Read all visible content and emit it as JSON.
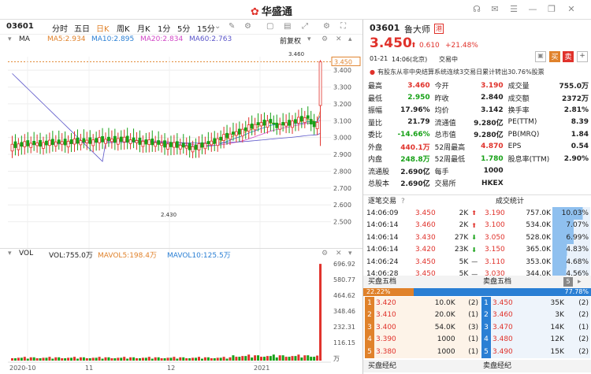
{
  "window": {
    "logo": "华盛通",
    "icons": [
      "headset-icon",
      "mail-icon",
      "menu-icon",
      "minimize-icon",
      "restore-icon",
      "close-icon"
    ]
  },
  "toolbar": {
    "code": "03601",
    "periods": [
      "分时",
      "五日",
      "日K",
      "周K",
      "月K",
      "1分",
      "5分",
      "15分"
    ],
    "active": "日K",
    "adj": "前复权"
  },
  "ma": {
    "label": "MA",
    "ma5": "MA5:2.934",
    "ma10": "MA10:2.895",
    "ma20": "MA20:2.834",
    "ma60": "MA60:2.763",
    "colors": {
      "ma5": "#e0822b",
      "ma10": "#2a7fd4",
      "ma20": "#d147c6",
      "ma60": "#5a55c9"
    }
  },
  "price_axis": [
    "3.450",
    "3.400",
    "3.300",
    "3.200",
    "3.100",
    "3.000",
    "2.900",
    "2.800",
    "2.700",
    "2.600",
    "2.500"
  ],
  "high_label": "3.460",
  "low_label": "2.430",
  "current_label": "3.450",
  "vol": {
    "label": "VOL",
    "vol": "VOL:755.0万",
    "mavol5": "MAVOL5:198.4万",
    "mavol10": "MAVOL10:125.5万",
    "axis": [
      "696.92",
      "580.77",
      "464.62",
      "348.46",
      "232.31",
      "116.15",
      "万"
    ]
  },
  "xaxis": [
    "2020-10",
    "11",
    "12",
    "2021"
  ],
  "stock": {
    "code": "03601",
    "name": "鲁大师",
    "badge": "港",
    "price": "3.450",
    "change": "0.610",
    "pct": "+21.48%",
    "date": "01-21",
    "time": "14:06(北京)",
    "status": "交易中",
    "buy": "买",
    "sell": "卖",
    "notice": "有股东从非中央结算系统连续3交易日累计转出30.76%股票"
  },
  "stats": [
    [
      "最高",
      "3.460",
      "今开",
      "3.190",
      "成交量",
      "755.0万"
    ],
    [
      "最低",
      "2.950",
      "昨收",
      "2.840",
      "成交额",
      "2372万"
    ],
    [
      "振幅",
      "17.96%",
      "均价",
      "3.142",
      "换手率",
      "2.81%"
    ],
    [
      "量比",
      "21.79",
      "流通值",
      "9.280亿",
      "PE(TTM)",
      "8.39"
    ],
    [
      "委比",
      "-14.66%",
      "总市值",
      "9.280亿",
      "PB(MRQ)",
      "1.84"
    ],
    [
      "外盘",
      "440.1万",
      "52周最高",
      "4.870",
      "EPS",
      "0.54"
    ],
    [
      "内盘",
      "248.8万",
      "52周最低",
      "1.780",
      "股息率(TTM)",
      "2.90%"
    ],
    [
      "流通股",
      "2.690亿",
      "每手",
      "1000",
      "",
      ""
    ],
    [
      "总股本",
      "2.690亿",
      "交易所",
      "HKEX",
      "",
      ""
    ]
  ],
  "trades_title": "逐笔交易",
  "stats_title": "成交统计",
  "trades": [
    [
      "14:06:09",
      "3.450",
      "2K",
      "up"
    ],
    [
      "14:06:14",
      "3.460",
      "2K",
      "up"
    ],
    [
      "14:06:14",
      "3.430",
      "27K",
      "down"
    ],
    [
      "14:06:14",
      "3.420",
      "23K",
      "down"
    ],
    [
      "14:06:24",
      "3.450",
      "5K",
      "flat"
    ],
    [
      "14:06:28",
      "3.450",
      "5K",
      "flat"
    ]
  ],
  "vol_stats": [
    [
      "3.190",
      "757.0K",
      "10.03%"
    ],
    [
      "3.100",
      "534.0K",
      "7.07%"
    ],
    [
      "3.050",
      "528.0K",
      "6.99%"
    ],
    [
      "3.150",
      "365.0K",
      "4.83%"
    ],
    [
      "3.110",
      "353.0K",
      "4.68%"
    ],
    [
      "3.030",
      "344.0K",
      "4.56%"
    ]
  ],
  "bid_title": "买盘五档",
  "ask_title": "卖盘五档",
  "depth_level": "5",
  "bid_pct": "22.22%",
  "ask_pct": "77.78%",
  "bids": [
    [
      "1",
      "3.420",
      "10.0K",
      "(2)"
    ],
    [
      "2",
      "3.410",
      "20.0K",
      "(1)"
    ],
    [
      "3",
      "3.400",
      "54.0K",
      "(3)"
    ],
    [
      "4",
      "3.390",
      "1000",
      "(1)"
    ],
    [
      "5",
      "3.380",
      "1000",
      "(1)"
    ]
  ],
  "asks": [
    [
      "1",
      "3.450",
      "35K",
      "(2)"
    ],
    [
      "2",
      "3.460",
      "3K",
      "(2)"
    ],
    [
      "3",
      "3.470",
      "14K",
      "(1)"
    ],
    [
      "4",
      "3.480",
      "12K",
      "(2)"
    ],
    [
      "5",
      "3.490",
      "15K",
      "(2)"
    ]
  ],
  "bid_broker": "买盘经纪",
  "ask_broker": "卖盘经纪"
}
